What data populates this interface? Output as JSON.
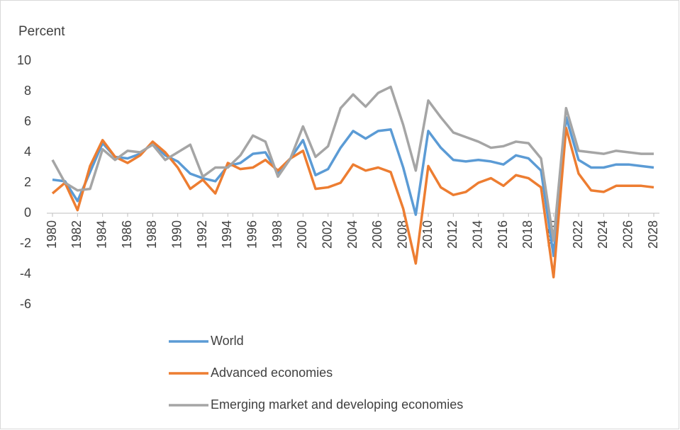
{
  "chart_data": {
    "type": "line",
    "ylabel": "Percent",
    "x": [
      1980,
      1981,
      1982,
      1983,
      1984,
      1985,
      1986,
      1987,
      1988,
      1989,
      1990,
      1991,
      1992,
      1993,
      1994,
      1995,
      1996,
      1997,
      1998,
      1999,
      2000,
      2001,
      2002,
      2003,
      2004,
      2005,
      2006,
      2007,
      2008,
      2009,
      2010,
      2011,
      2012,
      2013,
      2014,
      2015,
      2016,
      2017,
      2018,
      2019,
      2020,
      2021,
      2022,
      2023,
      2024,
      2025,
      2026,
      2027,
      2028
    ],
    "xlim": [
      1980,
      2028
    ],
    "xticks": [
      1980,
      1982,
      1984,
      1986,
      1988,
      1990,
      1992,
      1994,
      1996,
      1998,
      2000,
      2002,
      2004,
      2006,
      2008,
      2010,
      2012,
      2014,
      2016,
      2018,
      2020,
      2022,
      2024,
      2026,
      2028
    ],
    "ylim": [
      -6,
      10
    ],
    "yticks": [
      -6,
      -4,
      -2,
      0,
      2,
      4,
      6,
      8,
      10
    ],
    "grid": false,
    "legend": "bottom",
    "series": [
      {
        "name": "World",
        "color": "#5b9bd5",
        "values": [
          2.2,
          2.1,
          0.8,
          2.7,
          4.6,
          3.7,
          3.6,
          3.9,
          4.6,
          3.8,
          3.4,
          2.6,
          2.3,
          2.1,
          3.1,
          3.3,
          3.9,
          4.0,
          2.6,
          3.6,
          4.8,
          2.5,
          2.9,
          4.3,
          5.4,
          4.9,
          5.4,
          5.5,
          3.0,
          -0.1,
          5.4,
          4.3,
          3.5,
          3.4,
          3.5,
          3.4,
          3.2,
          3.8,
          3.6,
          2.8,
          -2.8,
          6.3,
          3.5,
          3.0,
          3.0,
          3.2,
          3.2,
          3.1,
          3.0
        ]
      },
      {
        "name": "Advanced economies",
        "color": "#ed7d31",
        "values": [
          1.3,
          2.0,
          0.2,
          3.1,
          4.8,
          3.7,
          3.3,
          3.8,
          4.7,
          4.0,
          3.0,
          1.6,
          2.2,
          1.3,
          3.3,
          2.9,
          3.0,
          3.5,
          2.8,
          3.6,
          4.1,
          1.6,
          1.7,
          2.0,
          3.2,
          2.8,
          3.0,
          2.7,
          0.3,
          -3.3,
          3.1,
          1.7,
          1.2,
          1.4,
          2.0,
          2.3,
          1.8,
          2.5,
          2.3,
          1.7,
          -4.2,
          5.6,
          2.6,
          1.5,
          1.4,
          1.8,
          1.8,
          1.8,
          1.7
        ]
      },
      {
        "name": "Emerging market and developing economies",
        "color": "#a5a5a5",
        "values": [
          3.5,
          2.0,
          1.5,
          1.6,
          4.2,
          3.5,
          4.1,
          4.0,
          4.5,
          3.5,
          4.0,
          4.5,
          2.4,
          3.0,
          3.0,
          3.8,
          5.1,
          4.7,
          2.4,
          3.6,
          5.7,
          3.7,
          4.4,
          6.9,
          7.8,
          7.0,
          7.9,
          8.3,
          5.8,
          2.8,
          7.4,
          6.3,
          5.3,
          5.0,
          4.7,
          4.3,
          4.4,
          4.7,
          4.6,
          3.6,
          -1.8,
          6.9,
          4.1,
          4.0,
          3.9,
          4.1,
          4.0,
          3.9,
          3.9
        ]
      }
    ]
  }
}
